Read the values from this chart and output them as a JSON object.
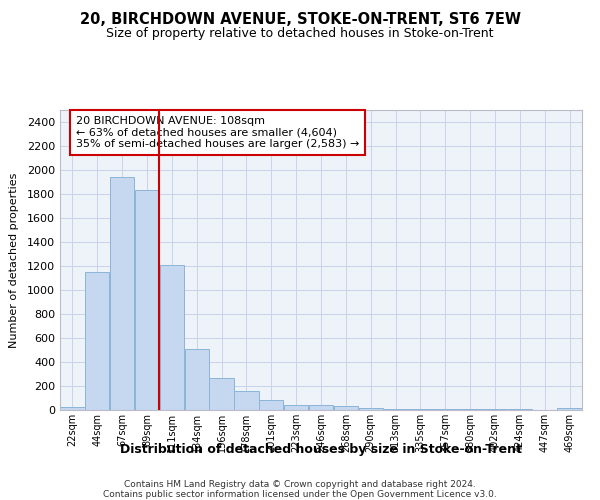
{
  "title1": "20, BIRCHDOWN AVENUE, STOKE-ON-TRENT, ST6 7EW",
  "title2": "Size of property relative to detached houses in Stoke-on-Trent",
  "xlabel": "Distribution of detached houses by size in Stoke-on-Trent",
  "ylabel": "Number of detached properties",
  "bin_labels": [
    "22sqm",
    "44sqm",
    "67sqm",
    "89sqm",
    "111sqm",
    "134sqm",
    "156sqm",
    "178sqm",
    "201sqm",
    "223sqm",
    "246sqm",
    "268sqm",
    "290sqm",
    "313sqm",
    "335sqm",
    "357sqm",
    "380sqm",
    "402sqm",
    "424sqm",
    "447sqm",
    "469sqm"
  ],
  "bar_heights": [
    25,
    1150,
    1940,
    1830,
    1210,
    510,
    265,
    155,
    80,
    45,
    40,
    30,
    18,
    12,
    10,
    8,
    6,
    5,
    5,
    4,
    18
  ],
  "bar_color": "#c5d8ef",
  "bar_edgecolor": "#8ab4d8",
  "red_line_bin": 4,
  "red_line_color": "#cc0000",
  "annotation_line1": "20 BIRCHDOWN AVENUE: 108sqm",
  "annotation_line2": "← 63% of detached houses are smaller (4,604)",
  "annotation_line3": "35% of semi-detached houses are larger (2,583) →",
  "ylim": [
    0,
    2500
  ],
  "yticks": [
    0,
    200,
    400,
    600,
    800,
    1000,
    1200,
    1400,
    1600,
    1800,
    2000,
    2200,
    2400
  ],
  "grid_color": "#c8d4e8",
  "bg_color": "#eef2f9",
  "footer1": "Contains HM Land Registry data © Crown copyright and database right 2024.",
  "footer2": "Contains public sector information licensed under the Open Government Licence v3.0."
}
